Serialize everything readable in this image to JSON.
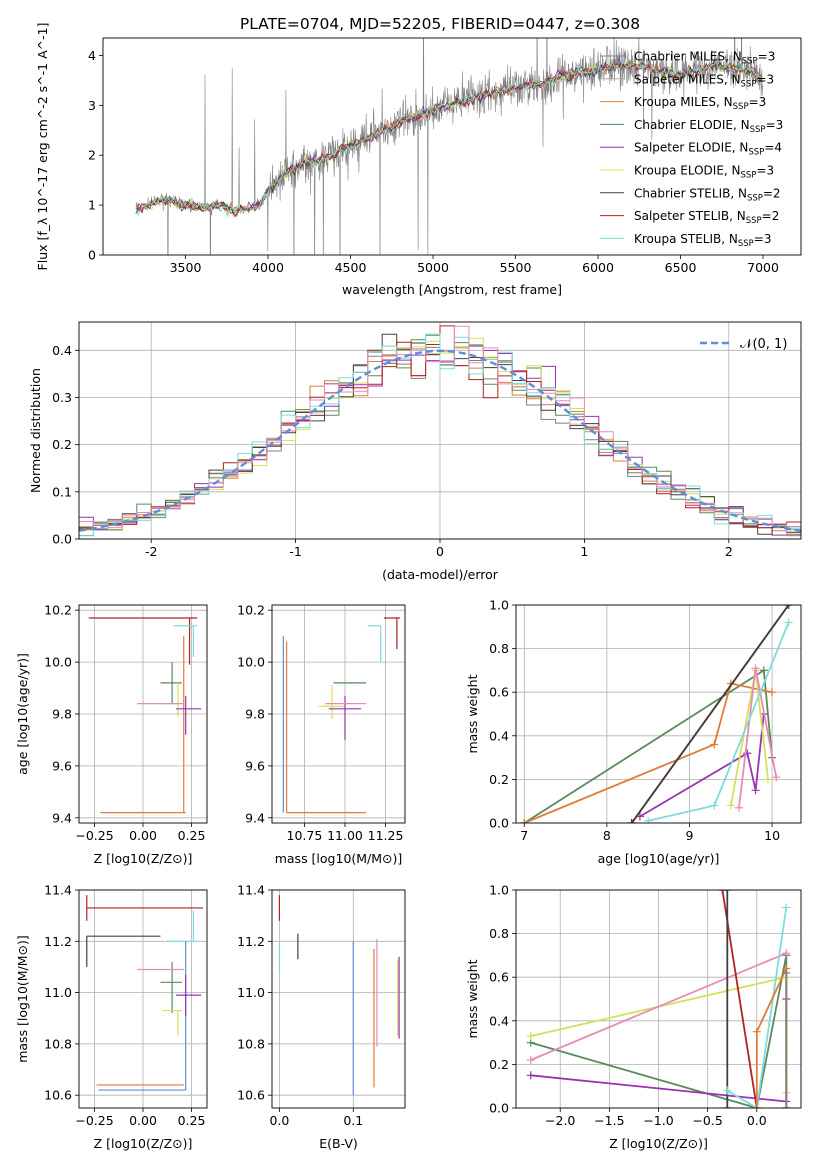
{
  "figure": {
    "title": "PLATE=0704, MJD=52205, FIBERID=0447, z=0.308"
  },
  "chart_data": [
    {
      "id": "spectrum",
      "type": "line",
      "xlabel": "wavelength [Angstrom, rest frame]",
      "ylabel": "Flux [f_λ 10^-17 erg cm^-2 s^-1 A^-1]",
      "xlim": [
        3000,
        7230
      ],
      "ylim": [
        0,
        4.35
      ],
      "xticks": [
        3500,
        4000,
        4500,
        5000,
        5500,
        6000,
        6500,
        7000
      ],
      "yticks": [
        0,
        1,
        2,
        3,
        4
      ],
      "grid": false,
      "legend_position": "upper-right",
      "data_color": "#808080",
      "data_xrange": [
        3200,
        7000
      ],
      "continuum": {
        "x": [
          3200,
          3300,
          3400,
          3500,
          3600,
          3700,
          3800,
          3900,
          3950,
          4000,
          4100,
          4200,
          4300,
          4400,
          4500,
          4600,
          4700,
          4800,
          4900,
          5000,
          5100,
          5200,
          5300,
          5400,
          5500,
          5600,
          5700,
          5800,
          5900,
          6000,
          6100,
          6200,
          6300,
          6400,
          6500,
          6600,
          6700,
          6800,
          6900,
          7000
        ],
        "y": [
          0.9,
          1.05,
          1.1,
          1.0,
          0.95,
          1.0,
          0.9,
          0.95,
          1.0,
          1.3,
          1.65,
          1.8,
          1.9,
          2.0,
          2.2,
          2.35,
          2.5,
          2.65,
          2.8,
          2.9,
          3.0,
          3.1,
          3.2,
          3.3,
          3.35,
          3.4,
          3.5,
          3.6,
          3.65,
          3.7,
          3.8,
          3.8,
          3.75,
          3.65,
          3.6,
          3.7,
          3.8,
          3.75,
          3.7,
          3.55
        ]
      },
      "series": [
        {
          "name": "Chabrier MILES, N_SSP=3",
          "label_main": "Chabrier MILES, N",
          "label_sub": "SSP",
          "label_end": "=3",
          "color": "#808080"
        },
        {
          "name": "Salpeter MILES, N_SSP=3",
          "label_main": "Salpeter MILES, N",
          "label_sub": "SSP",
          "label_end": "=3",
          "color": "#aaaaaa"
        },
        {
          "name": "Kroupa MILES, N_SSP=3",
          "label_main": "Kroupa MILES, N",
          "label_sub": "SSP",
          "label_end": "=3",
          "color": "#e07b39"
        },
        {
          "name": "Chabrier ELODIE, N_SSP=3",
          "label_main": "Chabrier ELODIE, N",
          "label_sub": "SSP",
          "label_end": "=3",
          "color": "#5a8a5a"
        },
        {
          "name": "Salpeter ELODIE, N_SSP=4",
          "label_main": "Salpeter ELODIE, N",
          "label_sub": "SSP",
          "label_end": "=4",
          "color": "#9b30b3"
        },
        {
          "name": "Kroupa ELODIE, N_SSP=3",
          "label_main": "Kroupa ELODIE, N",
          "label_sub": "SSP",
          "label_end": "=3",
          "color": "#d4e05a"
        },
        {
          "name": "Chabrier STELIB, N_SSP=2",
          "label_main": "Chabrier STELIB, N",
          "label_sub": "SSP",
          "label_end": "=2",
          "color": "#404040"
        },
        {
          "name": "Salpeter STELIB, N_SSP=2",
          "label_main": "Salpeter STELIB, N",
          "label_sub": "SSP",
          "label_end": "=2",
          "color": "#b22222"
        },
        {
          "name": "Kroupa STELIB, N_SSP=3",
          "label_main": "Kroupa STELIB, N",
          "label_sub": "SSP",
          "label_end": "=3",
          "color": "#7fdbdb"
        }
      ]
    },
    {
      "id": "residual-histogram",
      "type": "histogram",
      "xlabel": "(data-model)/error",
      "ylabel": "Normed distribution",
      "xlim": [
        -2.5,
        2.5
      ],
      "ylim": [
        0,
        0.46
      ],
      "xticks": [
        -2,
        -1,
        0,
        1,
        2
      ],
      "yticks": [
        0.0,
        0.1,
        0.2,
        0.3,
        0.4
      ],
      "grid": true,
      "legend_position": "upper-right",
      "legend": [
        {
          "label": "𝒩(0, 1)",
          "color": "#5b8fd6",
          "style": "dashed"
        }
      ],
      "bin_width": 0.1,
      "series_colors": [
        "#808080",
        "#e07b39",
        "#5a8a5a",
        "#9b30b3",
        "#d4e05a",
        "#404040",
        "#b22222",
        "#7fdbdb",
        "#e88ab8"
      ]
    },
    {
      "id": "age-vs-Z",
      "type": "errorbar",
      "xlabel": "Z [log10(Z/Z⊙)]",
      "ylabel": "age [log10(age/yr)]",
      "xlim": [
        -0.33,
        0.33
      ],
      "ylim": [
        9.38,
        10.22
      ],
      "xticks": [
        -0.25,
        0.0,
        0.25
      ],
      "xticklabels": [
        "−0.25",
        "0.00",
        "0.25"
      ],
      "yticks": [
        9.4,
        9.6,
        9.8,
        10.0,
        10.2
      ],
      "grid": true,
      "points": [
        {
          "x": 0.24,
          "xerr": [
            0.52,
            0.04
          ],
          "y": 10.17,
          "yerr": [
            0.18,
            0.0
          ],
          "color": "#b22222"
        },
        {
          "x": 0.26,
          "xerr": [
            0.1,
            0.02
          ],
          "y": 10.14,
          "yerr": [
            0.12,
            0.0
          ],
          "color": "#7fdbdb"
        },
        {
          "x": 0.21,
          "xerr": [
            0.43,
            0.01
          ],
          "y": 9.42,
          "yerr": [
            0.0,
            0.68
          ],
          "color": "#e07b39"
        },
        {
          "x": 0.15,
          "xerr": [
            0.06,
            0.05
          ],
          "y": 9.92,
          "yerr": [
            0.08,
            0.08
          ],
          "color": "#5a8a5a"
        },
        {
          "x": 0.18,
          "xerr": [
            0.08,
            0.02
          ],
          "y": 9.84,
          "yerr": [
            0.05,
            0.08
          ],
          "color": "#d4e05a"
        },
        {
          "x": 0.2,
          "xerr": [
            0.23,
            0.01
          ],
          "y": 9.84,
          "yerr": [
            0.0,
            0.0
          ],
          "color": "#e88ab8"
        },
        {
          "x": 0.22,
          "xerr": [
            0.05,
            0.08
          ],
          "y": 9.82,
          "yerr": [
            0.1,
            0.05
          ],
          "color": "#9b30b3"
        }
      ]
    },
    {
      "id": "age-vs-mass",
      "type": "errorbar",
      "xlabel": "mass [log10(M/M⊙)]",
      "ylabel": "",
      "xlim": [
        10.55,
        11.37
      ],
      "ylim": [
        9.38,
        10.22
      ],
      "xticks": [
        10.75,
        11.0,
        11.25
      ],
      "xticklabels": [
        "10.75",
        "11.00",
        "11.25"
      ],
      "yticks": [
        9.4,
        9.6,
        9.8,
        10.0,
        10.2
      ],
      "grid": true,
      "points": [
        {
          "x": 11.32,
          "xerr": [
            0.08,
            0.02
          ],
          "y": 10.17,
          "yerr": [
            0.12,
            0.0
          ],
          "color": "#b22222"
        },
        {
          "x": 11.22,
          "xerr": [
            0.08,
            0.0
          ],
          "y": 10.14,
          "yerr": [
            0.14,
            0.0
          ],
          "color": "#7fdbdb"
        },
        {
          "x": 10.64,
          "xerr": [
            0.0,
            0.49
          ],
          "y": 9.42,
          "yerr": [
            0.0,
            0.66
          ],
          "color": "#e07b39"
        },
        {
          "x": 10.62,
          "xerr": [
            0.0,
            0.0
          ],
          "y": 9.42,
          "yerr": [
            0.0,
            0.68
          ],
          "color": "#5b8fd6"
        },
        {
          "x": 11.03,
          "xerr": [
            0.1,
            0.1
          ],
          "y": 9.92,
          "yerr": [
            0.0,
            0.0
          ],
          "color": "#5a8a5a"
        },
        {
          "x": 10.92,
          "xerr": [
            0.08,
            0.08
          ],
          "y": 9.83,
          "yerr": [
            0.05,
            0.08
          ],
          "color": "#d4e05a"
        },
        {
          "x": 11.0,
          "xerr": [
            0.1,
            0.1
          ],
          "y": 9.82,
          "yerr": [
            0.12,
            0.05
          ],
          "color": "#9b30b3"
        },
        {
          "x": 11.03,
          "xerr": [
            0.15,
            0.1
          ],
          "y": 9.84,
          "yerr": [
            0.0,
            0.0
          ],
          "color": "#e88ab8"
        }
      ]
    },
    {
      "id": "weight-vs-age",
      "type": "line",
      "xlabel": "age [log10(age/yr)]",
      "ylabel": "mass weight",
      "xlim": [
        6.9,
        10.35
      ],
      "ylim": [
        0,
        1.0
      ],
      "xticks": [
        7,
        8,
        9,
        10
      ],
      "yticks": [
        0.0,
        0.2,
        0.4,
        0.6,
        0.8,
        1.0
      ],
      "grid": true,
      "series": [
        {
          "color": "#5a8a5a",
          "x": [
            7.0,
            9.9,
            10.0
          ],
          "y": [
            0.0,
            0.7,
            0.3
          ]
        },
        {
          "color": "#e07b39",
          "x": [
            7.0,
            9.3,
            9.5,
            10.0
          ],
          "y": [
            0.0,
            0.36,
            0.64,
            0.6
          ]
        },
        {
          "color": "#9b30b3",
          "x": [
            8.4,
            9.7,
            9.8,
            9.9
          ],
          "y": [
            0.03,
            0.32,
            0.15,
            0.5
          ]
        },
        {
          "color": "#d4e05a",
          "x": [
            9.5,
            9.8,
            9.95
          ],
          "y": [
            0.08,
            0.7,
            0.2
          ]
        },
        {
          "color": "#e88ab8",
          "x": [
            9.6,
            9.8,
            10.05
          ],
          "y": [
            0.07,
            0.71,
            0.21
          ]
        },
        {
          "color": "#7fdbdb",
          "x": [
            8.5,
            9.3,
            10.2
          ],
          "y": [
            0.01,
            0.08,
            0.92
          ]
        },
        {
          "color": "#b22222",
          "x": [
            8.3,
            10.2
          ],
          "y": [
            0.0,
            1.0
          ]
        },
        {
          "color": "#404040",
          "x": [
            8.3,
            10.2
          ],
          "y": [
            0.0,
            1.0
          ]
        }
      ]
    },
    {
      "id": "mass-vs-Z",
      "type": "errorbar",
      "xlabel": "Z [log10(Z/Z⊙)]",
      "ylabel": "mass [log10(M/M⊙)]",
      "xlim": [
        -0.33,
        0.33
      ],
      "ylim": [
        10.55,
        11.4
      ],
      "xticks": [
        -0.25,
        0.0,
        0.25
      ],
      "xticklabels": [
        "−0.25",
        "0.00",
        "0.25"
      ],
      "yticks": [
        10.6,
        10.8,
        11.0,
        11.2,
        11.4
      ],
      "grid": true,
      "points": [
        {
          "x": -0.29,
          "xerr": [
            0.0,
            0.6
          ],
          "y": 11.33,
          "yerr": [
            0.05,
            0.05
          ],
          "color": "#b22222"
        },
        {
          "x": -0.29,
          "xerr": [
            0.0,
            0.38
          ],
          "y": 11.22,
          "yerr": [
            0.12,
            0.0
          ],
          "color": "#404040"
        },
        {
          "x": 0.26,
          "xerr": [
            0.14,
            0.02
          ],
          "y": 11.2,
          "yerr": [
            0.0,
            0.12
          ],
          "color": "#7fdbdb"
        },
        {
          "x": 0.21,
          "xerr": [
            0.45,
            0.0
          ],
          "y": 10.64,
          "yerr": [
            0.0,
            0.0
          ],
          "color": "#e07b39"
        },
        {
          "x": 0.22,
          "xerr": [
            0.45,
            0.0
          ],
          "y": 10.62,
          "yerr": [
            0.0,
            0.58
          ],
          "color": "#5b8fd6"
        },
        {
          "x": 0.15,
          "xerr": [
            0.06,
            0.05
          ],
          "y": 11.04,
          "yerr": [
            0.12,
            0.08
          ],
          "color": "#5a8a5a"
        },
        {
          "x": 0.18,
          "xerr": [
            0.08,
            0.02
          ],
          "y": 10.93,
          "yerr": [
            0.1,
            0.0
          ],
          "color": "#d4e05a"
        },
        {
          "x": 0.2,
          "xerr": [
            0.23,
            0.01
          ],
          "y": 11.09,
          "yerr": [
            0.0,
            0.0
          ],
          "color": "#e88ab8"
        },
        {
          "x": 0.22,
          "xerr": [
            0.05,
            0.08
          ],
          "y": 10.99,
          "yerr": [
            0.08,
            0.08
          ],
          "color": "#9b30b3"
        }
      ]
    },
    {
      "id": "mass-vs-EBV",
      "type": "errorbar",
      "xlabel": "E(B-V)",
      "ylabel": "",
      "xlim": [
        -0.01,
        0.17
      ],
      "ylim": [
        10.55,
        11.4
      ],
      "xticks": [
        0.0,
        0.1
      ],
      "xticklabels": [
        "0.0",
        "0.1"
      ],
      "yticks": [
        10.6,
        10.8,
        11.0,
        11.2,
        11.4
      ],
      "grid": true,
      "points": [
        {
          "x": 0.0,
          "xerr": [
            0.0,
            0.0
          ],
          "y": 11.33,
          "yerr": [
            0.05,
            0.05
          ],
          "color": "#b22222"
        },
        {
          "x": 0.0,
          "xerr": [
            0.0,
            0.0
          ],
          "y": 11.14,
          "yerr": [
            0.06,
            0.06
          ],
          "color": "#7fdbdb"
        },
        {
          "x": 0.025,
          "xerr": [
            0.0,
            0.0
          ],
          "y": 11.18,
          "yerr": [
            0.05,
            0.05
          ],
          "color": "#404040"
        },
        {
          "x": 0.1,
          "xerr": [
            0.0,
            0.0
          ],
          "y": 10.9,
          "yerr": [
            0.3,
            0.3
          ],
          "color": "#5b8fd6"
        },
        {
          "x": 0.128,
          "xerr": [
            0.0,
            0.0
          ],
          "y": 10.9,
          "yerr": [
            0.27,
            0.27
          ],
          "color": "#e07b39"
        },
        {
          "x": 0.132,
          "xerr": [
            0.0,
            0.0
          ],
          "y": 11.0,
          "yerr": [
            0.21,
            0.21
          ],
          "color": "#e88ab8"
        },
        {
          "x": 0.16,
          "xerr": [
            0.0,
            0.0
          ],
          "y": 10.98,
          "yerr": [
            0.15,
            0.15
          ],
          "color": "#d4e05a"
        },
        {
          "x": 0.162,
          "xerr": [
            0.0,
            0.0
          ],
          "y": 10.98,
          "yerr": [
            0.16,
            0.16
          ],
          "color": "#9b30b3"
        }
      ]
    },
    {
      "id": "weight-vs-Z",
      "type": "line",
      "xlabel": "Z [log10(Z/Z⊙)]",
      "ylabel": "mass weight",
      "xlim": [
        -2.45,
        0.45
      ],
      "ylim": [
        0,
        1.0
      ],
      "xticks": [
        -2.0,
        -1.5,
        -1.0,
        -0.5,
        0.0
      ],
      "xticklabels": [
        "−2.0",
        "−1.5",
        "−1.0",
        "−0.5",
        "0.0"
      ],
      "yticks": [
        0.0,
        0.2,
        0.4,
        0.6,
        0.8,
        1.0
      ],
      "grid": true,
      "series": [
        {
          "color": "#5a8a5a",
          "x": [
            -2.3,
            0.0,
            0.3,
            0.3
          ],
          "y": [
            0.3,
            0.0,
            0.7,
            0.0
          ]
        },
        {
          "color": "#9b30b3",
          "x": [
            -2.3,
            0.3,
            0.3
          ],
          "y": [
            0.15,
            0.03,
            0.5
          ]
        },
        {
          "color": "#d4e05a",
          "x": [
            -2.3,
            0.3,
            0.3
          ],
          "y": [
            0.33,
            0.6,
            0.07
          ]
        },
        {
          "color": "#e88ab8",
          "x": [
            -2.3,
            0.3
          ],
          "y": [
            0.22,
            0.71
          ]
        },
        {
          "color": "#b22222",
          "x": [
            -0.35,
            0.0
          ],
          "y": [
            1.0,
            0.0
          ]
        },
        {
          "color": "#404040",
          "x": [
            -0.3,
            -0.3
          ],
          "y": [
            0.0,
            1.0
          ]
        },
        {
          "color": "#7fdbdb",
          "x": [
            -0.3,
            0.0,
            0.3
          ],
          "y": [
            0.08,
            0.0,
            0.92
          ]
        },
        {
          "color": "#e07b39",
          "x": [
            0.0,
            0.0,
            0.3,
            0.3
          ],
          "y": [
            0.0,
            0.35,
            0.64,
            0.0
          ]
        },
        {
          "color": "#808080",
          "x": [
            0.3,
            0.3
          ],
          "y": [
            0.0,
            0.62
          ]
        }
      ]
    }
  ]
}
